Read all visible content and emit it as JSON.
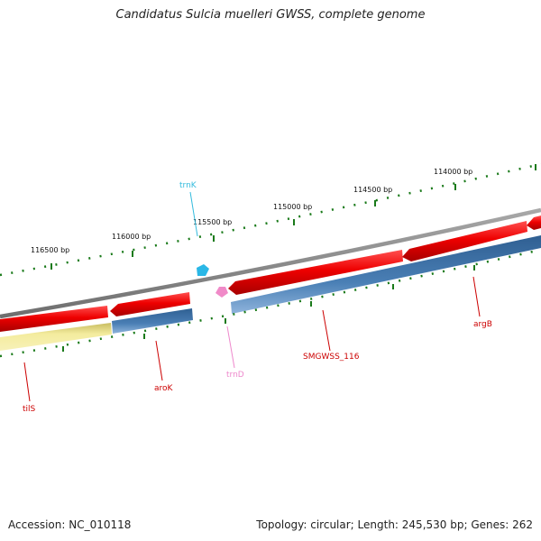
{
  "title": "Candidatus Sulcia muelleri GWSS, complete genome",
  "footer": {
    "accession": "Accession: NC_010118",
    "topology": "Topology: circular; Length: 245,530 bp; Genes: 262"
  },
  "scale_labels": [
    "116500 bp",
    "116000 bp",
    "115500 bp",
    "115000 bp",
    "114500 bp",
    "114000 bp"
  ],
  "genes": [
    {
      "name": "tilS",
      "color": "#cc0000"
    },
    {
      "name": "aroK",
      "color": "#cc0000"
    },
    {
      "name": "trnK",
      "color": "#33bbdd"
    },
    {
      "name": "trnD",
      "color": "#ee88cc"
    },
    {
      "name": "SMGWSS_116",
      "color": "#cc0000"
    },
    {
      "name": "argB",
      "color": "#cc0000"
    }
  ],
  "colors": {
    "cds_forward": "#ee0000",
    "cds_reverse": "#4a7fb5",
    "misc_feature": "#f2ea9a",
    "backbone": "#808080",
    "ticks": "#1a7a1a"
  }
}
